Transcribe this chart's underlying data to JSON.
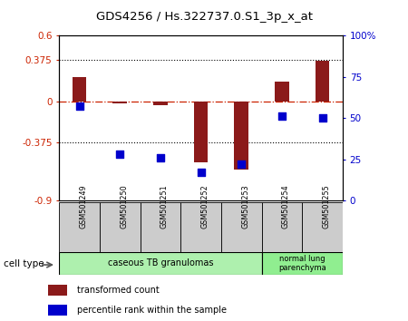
{
  "title": "GDS4256 / Hs.322737.0.S1_3p_x_at",
  "samples": [
    "GSM501249",
    "GSM501250",
    "GSM501251",
    "GSM501252",
    "GSM501253",
    "GSM501254",
    "GSM501255"
  ],
  "transformed_count": [
    0.22,
    -0.02,
    -0.03,
    -0.55,
    -0.62,
    0.18,
    0.37
  ],
  "percentile_rank": [
    57,
    28,
    26,
    17,
    22,
    51,
    50
  ],
  "ylim_left": [
    -0.9,
    0.6
  ],
  "ylim_right": [
    0,
    100
  ],
  "yticks_left": [
    -0.9,
    -0.375,
    0,
    0.375,
    0.6
  ],
  "ytick_labels_left": [
    "-0.9",
    "-0.375",
    "0",
    "0.375",
    "0.6"
  ],
  "yticks_right": [
    0,
    25,
    50,
    75,
    100
  ],
  "ytick_labels_right": [
    "0",
    "25",
    "50",
    "75",
    "100%"
  ],
  "hlines": [
    0.375,
    -0.375
  ],
  "bar_color": "#8B1A1A",
  "dot_color": "#0000CC",
  "zero_line_color": "#CC2200",
  "hline_color": "#000000",
  "group1_label": "caseous TB granulomas",
  "group1_color": "#aef0ae",
  "group1_n": 5,
  "group2_label": "normal lung\nparenchyma",
  "group2_color": "#90ee90",
  "group2_n": 2,
  "cell_type_label": "cell type",
  "legend_red_label": "transformed count",
  "legend_blue_label": "percentile rank within the sample",
  "bar_width": 0.35,
  "sample_box_color": "#cccccc",
  "bg_color": "#ffffff"
}
